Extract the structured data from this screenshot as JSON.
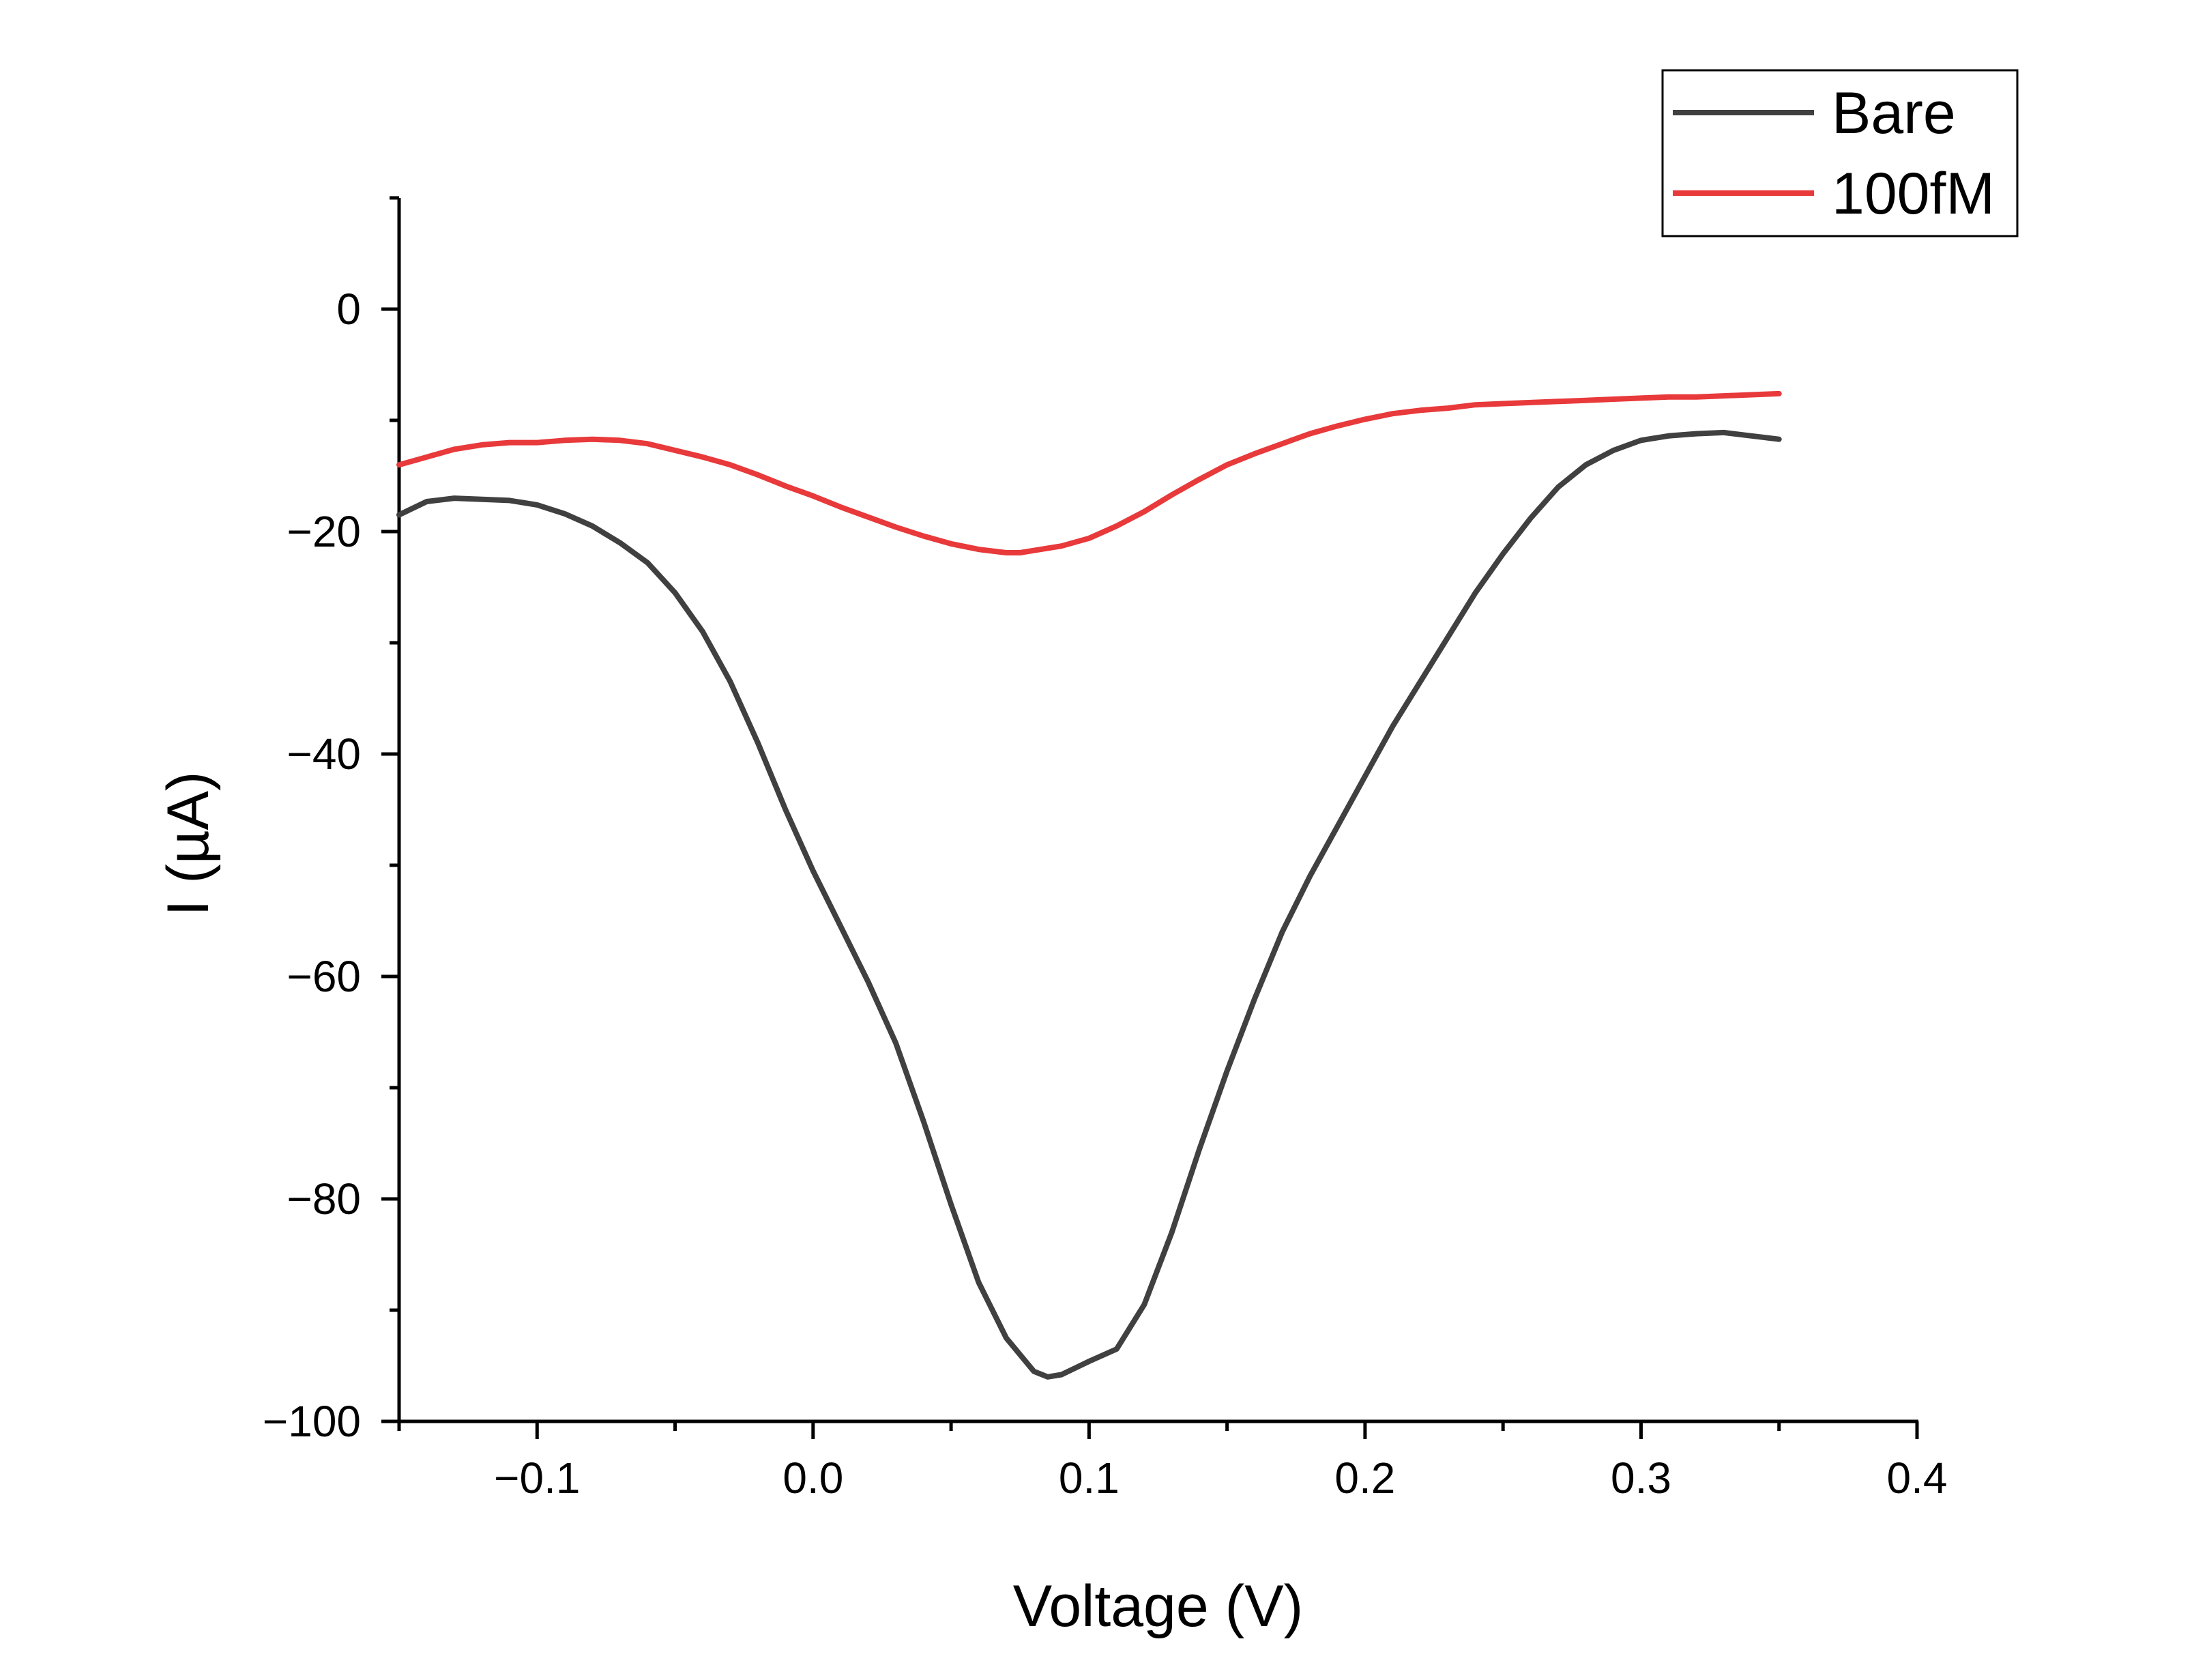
{
  "chart_data": {
    "type": "line",
    "xlabel": "Voltage (V)",
    "ylabel": "I (µA)",
    "xlim": [
      -0.15,
      0.4
    ],
    "ylim": [
      -100,
      10
    ],
    "xticks": [
      -0.1,
      0.0,
      0.1,
      0.2,
      0.3,
      0.4
    ],
    "xtick_labels": [
      "−0.1",
      "0.0",
      "0.1",
      "0.2",
      "0.3",
      "0.4"
    ],
    "yticks": [
      0,
      -20,
      -40,
      -60,
      -80,
      -100
    ],
    "ytick_labels": [
      "0",
      "−20",
      "−40",
      "−60",
      "−80",
      "−100"
    ],
    "grid": false,
    "legend_position": "top-right",
    "series": [
      {
        "name": "Bare",
        "color": "#404040",
        "x": [
          -0.15,
          -0.14,
          -0.13,
          -0.12,
          -0.11,
          -0.1,
          -0.09,
          -0.08,
          -0.07,
          -0.06,
          -0.05,
          -0.04,
          -0.03,
          -0.02,
          -0.01,
          0.0,
          0.01,
          0.02,
          0.03,
          0.04,
          0.05,
          0.06,
          0.07,
          0.08,
          0.085,
          0.09,
          0.095,
          0.1,
          0.11,
          0.12,
          0.13,
          0.14,
          0.15,
          0.16,
          0.17,
          0.18,
          0.19,
          0.2,
          0.21,
          0.22,
          0.23,
          0.24,
          0.25,
          0.26,
          0.27,
          0.28,
          0.29,
          0.3,
          0.31,
          0.32,
          0.33,
          0.34,
          0.35
        ],
        "y": [
          -18.5,
          -17.3,
          -17.0,
          -17.1,
          -17.2,
          -17.6,
          -18.4,
          -19.5,
          -21.0,
          -22.8,
          -25.5,
          -29.0,
          -33.5,
          -39.0,
          -45.0,
          -50.5,
          -55.5,
          -60.5,
          -66.0,
          -73.0,
          -80.5,
          -87.5,
          -92.5,
          -95.5,
          -96.0,
          -95.8,
          -95.2,
          -94.6,
          -93.5,
          -89.5,
          -83.0,
          -75.5,
          -68.5,
          -62.0,
          -56.0,
          -51.0,
          -46.5,
          -42.0,
          -37.5,
          -33.5,
          -29.5,
          -25.5,
          -22.0,
          -18.8,
          -16.0,
          -14.0,
          -12.7,
          -11.8,
          -11.4,
          -11.2,
          -11.1,
          -11.4,
          -11.7
        ]
      },
      {
        "name": "100fM",
        "color": "#e8393b",
        "x": [
          -0.15,
          -0.14,
          -0.13,
          -0.12,
          -0.11,
          -0.1,
          -0.09,
          -0.08,
          -0.07,
          -0.06,
          -0.05,
          -0.04,
          -0.03,
          -0.02,
          -0.01,
          0.0,
          0.01,
          0.02,
          0.03,
          0.04,
          0.05,
          0.06,
          0.07,
          0.075,
          0.08,
          0.09,
          0.1,
          0.11,
          0.12,
          0.13,
          0.14,
          0.15,
          0.16,
          0.17,
          0.18,
          0.19,
          0.2,
          0.21,
          0.22,
          0.23,
          0.24,
          0.25,
          0.26,
          0.27,
          0.28,
          0.29,
          0.3,
          0.31,
          0.32,
          0.33,
          0.34,
          0.35
        ],
        "y": [
          -14.0,
          -13.3,
          -12.6,
          -12.2,
          -12.0,
          -12.0,
          -11.8,
          -11.7,
          -11.8,
          -12.1,
          -12.7,
          -13.3,
          -14.0,
          -14.9,
          -15.9,
          -16.8,
          -17.8,
          -18.7,
          -19.6,
          -20.4,
          -21.1,
          -21.6,
          -21.9,
          -21.9,
          -21.7,
          -21.3,
          -20.6,
          -19.5,
          -18.2,
          -16.7,
          -15.3,
          -14.0,
          -13.0,
          -12.1,
          -11.2,
          -10.5,
          -9.9,
          -9.4,
          -9.1,
          -8.9,
          -8.6,
          -8.5,
          -8.4,
          -8.3,
          -8.2,
          -8.1,
          -8.0,
          -7.9,
          -7.9,
          -7.8,
          -7.7,
          -7.6
        ]
      }
    ]
  }
}
